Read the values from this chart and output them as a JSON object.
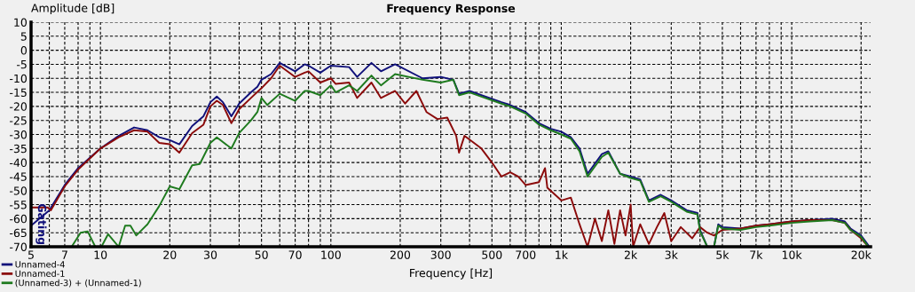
{
  "chart_data": {
    "type": "line",
    "title": "Frequency Response",
    "xlabel": "Frequency [Hz]",
    "ylabel": "Amplitude [dB]",
    "log": "x",
    "xlim": [
      5,
      22000
    ],
    "ylim": [
      -70,
      10
    ],
    "xticks": [
      5,
      {
        "value": 6,
        "label": null
      },
      7,
      {
        "value": 8,
        "label": null
      },
      {
        "value": 9,
        "label": null
      },
      10,
      20,
      30,
      {
        "value": 40,
        "label": null
      },
      50,
      {
        "value": 60,
        "label": null
      },
      70,
      {
        "value": 80,
        "label": null
      },
      {
        "value": 90,
        "label": null
      },
      100,
      200,
      300,
      {
        "value": 400,
        "label": null
      },
      500,
      {
        "value": 600,
        "label": null
      },
      700,
      {
        "value": 800,
        "label": null
      },
      {
        "value": 900,
        "label": null
      },
      {
        "value": 1000,
        "label": "1k"
      },
      {
        "value": 2000,
        "label": "2k"
      },
      {
        "value": 3000,
        "label": "3k"
      },
      {
        "value": 4000,
        "label": null
      },
      {
        "value": 5000,
        "label": "5k"
      },
      {
        "value": 6000,
        "label": null
      },
      {
        "value": 7000,
        "label": "7k"
      },
      {
        "value": 8000,
        "label": null
      },
      {
        "value": 9000,
        "label": null
      },
      {
        "value": 10000,
        "label": "10k"
      },
      {
        "value": 20000,
        "label": "20k"
      }
    ],
    "yticks": [
      10,
      5,
      0,
      -5,
      -10,
      -15,
      -20,
      -25,
      -30,
      -35,
      -40,
      -45,
      -50,
      -55,
      -60,
      -65,
      -70
    ],
    "grid": true,
    "legend": "bottom left",
    "line_style": "solid",
    "marker": "none",
    "annotations": [
      "Gating"
    ],
    "series": [
      {
        "name": "Unnamed-4",
        "color": "#10107a",
        "x": [
          5,
          6,
          7,
          8,
          10,
          12,
          14,
          16,
          18,
          20,
          22,
          25,
          28,
          30,
          32,
          34,
          37,
          40,
          45,
          48,
          50,
          55,
          60,
          70,
          77,
          80,
          90,
          100,
          120,
          130,
          150,
          165,
          190,
          250,
          300,
          340,
          360,
          400,
          450,
          550,
          600,
          700,
          800,
          900,
          1000,
          1100,
          1200,
          1300,
          1500,
          1600,
          1800,
          2000,
          2200,
          2400,
          2700,
          3000,
          3500,
          3900,
          4000,
          4300,
          4600,
          4800,
          5000,
          6000,
          7000,
          8000,
          10000,
          12000,
          15000,
          17000,
          18000,
          20000,
          21500
        ],
        "values": [
          -62.5,
          -57,
          -48,
          -42,
          -35,
          -30.5,
          -27.5,
          -28.5,
          -31,
          -32,
          -33.5,
          -27,
          -23.5,
          -18.5,
          -16.5,
          -18.5,
          -23.5,
          -19,
          -15,
          -13,
          -10.5,
          -8.5,
          -4.5,
          -7.5,
          -5,
          -5.5,
          -8,
          -5.5,
          -6,
          -9.5,
          -4.5,
          -7.5,
          -5,
          -10,
          -9.5,
          -10.5,
          -15.5,
          -14.5,
          -16,
          -18.5,
          -19.5,
          -22,
          -26,
          -28,
          -29,
          -31,
          -35,
          -44,
          -37,
          -36,
          -44,
          -45,
          -46,
          -53.5,
          -51.5,
          -53.5,
          -57,
          -58,
          -64,
          -70,
          -70,
          -62,
          -63,
          -63.5,
          -62.5,
          -62,
          -61,
          -60.5,
          -60,
          -61,
          -63.5,
          -66,
          -69.5
        ]
      },
      {
        "name": "Unnamed-1",
        "color": "#8b0a0a",
        "x": [
          5,
          5.9,
          6.1,
          7,
          8,
          10,
          12,
          14,
          16,
          18,
          20,
          22,
          25,
          28,
          30,
          32,
          34,
          37,
          40,
          45,
          50,
          55,
          60,
          70,
          77,
          80,
          90,
          100,
          105,
          120,
          130,
          150,
          165,
          190,
          210,
          235,
          260,
          290,
          320,
          350,
          360,
          380,
          450,
          500,
          550,
          600,
          650,
          700,
          800,
          850,
          870,
          1000,
          1100,
          1200,
          1300,
          1400,
          1500,
          1600,
          1700,
          1800,
          1900,
          2000,
          2050,
          2200,
          2400,
          2600,
          2800,
          3000,
          3300,
          3700,
          4000,
          4300,
          4600,
          5000,
          6000,
          7000,
          8000,
          10000,
          12000,
          15000,
          17000,
          18000,
          20000,
          21500
        ],
        "values": [
          -56,
          -56,
          -57,
          -48.5,
          -42.5,
          -35,
          -31,
          -28.5,
          -29,
          -33,
          -33.5,
          -36.5,
          -29.5,
          -26.5,
          -20,
          -18,
          -19.5,
          -26,
          -21,
          -17,
          -13.5,
          -10,
          -5.5,
          -9.5,
          -8,
          -7.5,
          -11.5,
          -10,
          -12,
          -11.5,
          -17,
          -11.5,
          -17,
          -14.5,
          -19,
          -14.5,
          -22,
          -24.5,
          -24,
          -30.5,
          -36.5,
          -30.5,
          -35,
          -40,
          -45,
          -43.5,
          -45,
          -48,
          -47,
          -42,
          -49,
          -53.5,
          -52.5,
          -62,
          -70,
          -60,
          -68,
          -57,
          -69,
          -57,
          -66,
          -55,
          -70,
          -62,
          -69,
          -63,
          -58,
          -68,
          -63,
          -67,
          -63,
          -65,
          -66,
          -64,
          -63.5,
          -62.5,
          -62,
          -61,
          -60.5,
          -60.5,
          -61.5,
          -64,
          -67,
          -70
        ]
      },
      {
        "name": "(Unnamed-3) + (Unnamed-1)",
        "color": "#1e7a1e",
        "x": [
          7.5,
          8.2,
          8.8,
          9.5,
          9.8,
          10.1,
          10.8,
          12,
          12.8,
          13.5,
          14.3,
          16,
          18,
          20,
          22,
          25,
          27,
          30,
          32,
          37,
          40,
          45,
          48,
          50,
          53,
          60,
          70,
          77,
          80,
          90,
          100,
          105,
          120,
          130,
          150,
          165,
          190,
          250,
          300,
          340,
          360,
          400,
          450,
          550,
          600,
          700,
          800,
          900,
          1000,
          1100,
          1200,
          1300,
          1500,
          1600,
          1800,
          2000,
          2200,
          2400,
          2700,
          3000,
          3500,
          3900,
          4000,
          4300,
          4600,
          4800,
          5000,
          6000,
          7000,
          8000,
          10000,
          12000,
          15000,
          17000,
          18000,
          20000,
          21500
        ],
        "values": [
          -70,
          -65,
          -64.5,
          -70,
          null,
          -70,
          -65.5,
          -70,
          -62.5,
          -62.5,
          -66,
          -62,
          -55.5,
          -48.5,
          -49.5,
          -41,
          -40.5,
          -33,
          -31,
          -35,
          -29.5,
          -25,
          -22,
          -17,
          -19.5,
          -15.5,
          -18,
          -14.5,
          -14.5,
          -16,
          -12.5,
          -15,
          -12.5,
          -14.5,
          -9,
          -12.5,
          -8.5,
          -10.5,
          -11.5,
          -10.5,
          -16,
          -15,
          -16.5,
          -19,
          -20,
          -22.5,
          -26.5,
          -28.5,
          -30,
          -31.5,
          -36,
          -45,
          -38,
          -36.5,
          -44,
          -45.5,
          -46.5,
          -54,
          -52,
          -54,
          -57.5,
          -58.5,
          -64.5,
          -70,
          -70,
          -62.5,
          -63.5,
          -64,
          -63,
          -62.5,
          -61.5,
          -61,
          -60.5,
          -61.5,
          -64,
          -66.5,
          -70
        ]
      }
    ]
  }
}
